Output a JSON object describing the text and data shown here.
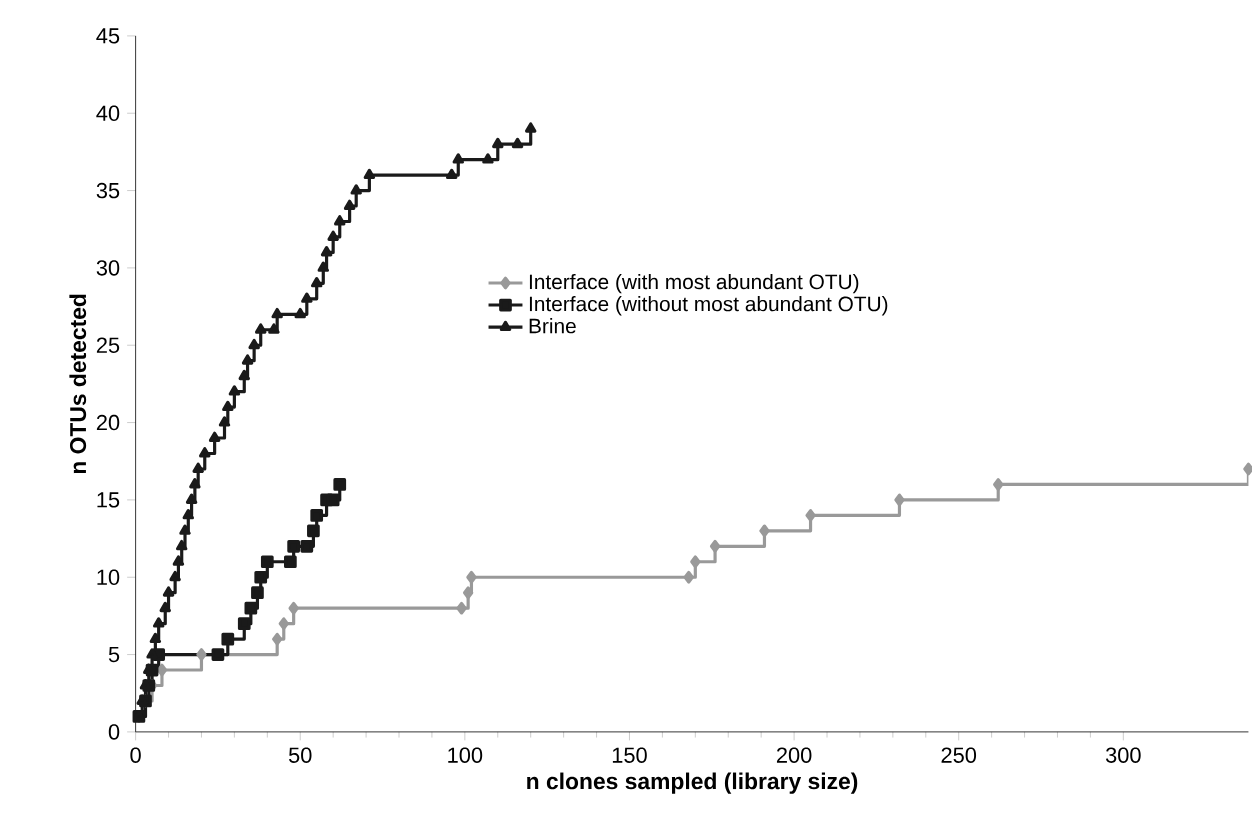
{
  "chart_data": {
    "type": "step",
    "xlabel": "n clones sampled (library size)",
    "ylabel": "n OTUs detected",
    "xlim": [
      0,
      338
    ],
    "ylim": [
      0,
      45
    ],
    "xticks": [
      0,
      50,
      100,
      150,
      200,
      250,
      300
    ],
    "yticks": [
      0,
      5,
      10,
      15,
      20,
      25,
      30,
      35,
      40,
      45
    ],
    "grid": false,
    "legend": "top",
    "line_style": "solid",
    "series": [
      {
        "name": "Interface (with most abundant OTU)",
        "color": "#999999",
        "marker": "diamond",
        "x": [
          1,
          3,
          5,
          8,
          20,
          43,
          45,
          48,
          99,
          101,
          102,
          168,
          170,
          176,
          191,
          205,
          232,
          262,
          338
        ],
        "values": [
          1,
          2,
          3,
          4,
          5,
          6,
          7,
          8,
          8,
          9,
          10,
          10,
          11,
          12,
          13,
          14,
          15,
          16,
          17
        ]
      },
      {
        "name": "Interface (without most abundant OTU)",
        "color": "#1a1a1a",
        "marker": "square",
        "x": [
          1,
          3,
          4,
          5,
          7,
          25,
          28,
          33,
          35,
          37,
          38,
          40,
          47,
          48,
          52,
          54,
          55,
          58,
          60,
          62
        ],
        "values": [
          1,
          2,
          3,
          4,
          5,
          5,
          6,
          7,
          8,
          9,
          10,
          11,
          11,
          12,
          12,
          13,
          14,
          15,
          15,
          16
        ]
      },
      {
        "name": "Brine",
        "color": "#1a1a1a",
        "marker": "triangle",
        "x": [
          1,
          2,
          3,
          4,
          5,
          6,
          7,
          9,
          10,
          12,
          13,
          14,
          15,
          16,
          17,
          18,
          19,
          21,
          24,
          27,
          28,
          30,
          33,
          34,
          36,
          38,
          42,
          43,
          50,
          52,
          55,
          57,
          58,
          60,
          62,
          65,
          67,
          71,
          96,
          98,
          107,
          110,
          116,
          120
        ],
        "values": [
          1,
          2,
          3,
          4,
          5,
          6,
          7,
          8,
          9,
          10,
          11,
          12,
          13,
          14,
          15,
          16,
          17,
          18,
          19,
          20,
          21,
          22,
          23,
          24,
          25,
          26,
          26,
          27,
          27,
          28,
          29,
          30,
          31,
          32,
          33,
          34,
          35,
          36,
          36,
          37,
          37,
          38,
          38,
          39
        ]
      }
    ]
  }
}
